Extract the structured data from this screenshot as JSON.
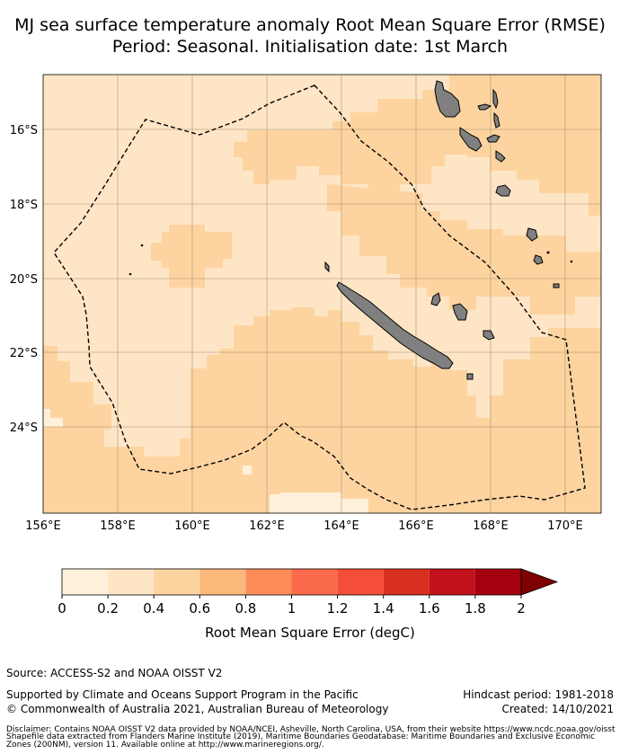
{
  "header": {
    "title_line1": "MJ sea surface temperature anomaly Root Mean Square Error (RMSE)",
    "title_line2": "Period: Seasonal. Initialisation date: 1st March"
  },
  "map": {
    "lon_ticks": [
      "156°E",
      "158°E",
      "160°E",
      "162°E",
      "164°E",
      "166°E",
      "168°E",
      "170°E"
    ],
    "lat_ticks": [
      "16°S",
      "18°S",
      "20°S",
      "22°S",
      "24°S"
    ],
    "colors": {
      "bin_0_0_2": "#fff0dc",
      "bin_0_2_0_4": "#fee5c5",
      "bin_0_4_0_6": "#fdd4a0",
      "land": "#808080",
      "eez_line": "#000000"
    }
  },
  "colorbar": {
    "ticks": [
      "0",
      "0.2",
      "0.4",
      "0.6",
      "0.8",
      "1",
      "1.2",
      "1.4",
      "1.6",
      "1.8",
      "2"
    ],
    "colors": [
      "#fff0dc",
      "#fee5c5",
      "#fdd4a0",
      "#fdb87c",
      "#fc8d59",
      "#fb6a4a",
      "#f44d38",
      "#d7301f",
      "#c2111b",
      "#a50010",
      "#7f0000"
    ],
    "label": "Root Mean Square Error (degC)"
  },
  "footer": {
    "source": "Source: ACCESS-S2 and NOAA OISST V2",
    "support": "Supported by Climate and Oceans Support Program in the Pacific",
    "copyright": "© Commonwealth of Australia 2021, Australian Bureau of Meteorology",
    "hindcast": "Hindcast period: 1981-2018",
    "created": "Created: 14/10/2021",
    "disclaimer_1": "Disclaimer: Contains NOAA OISST V2 data provided by NOAA/NCEI, Asheville, North Carolina, USA, from their website https://www.ncdc.noaa.gov/oisst",
    "disclaimer_2": "Shapefile data extracted from Flanders Marine Institute (2019), Maritime Boundaries Geodatabase: Maritime Boundaries and Exclusive Economic",
    "disclaimer_3": "Zones (200NM), version 11. Available online at http://www.marineregions.org/."
  }
}
